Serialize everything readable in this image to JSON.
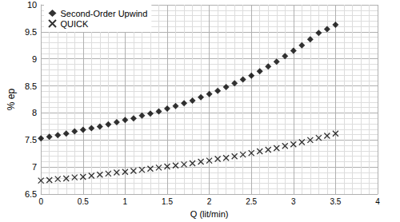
{
  "chart_data": {
    "type": "scatter",
    "x_label": "Q (lit/min)",
    "y_label": "% ep",
    "x": [
      0,
      0.1,
      0.2,
      0.3,
      0.4,
      0.5,
      0.6,
      0.7,
      0.8,
      0.9,
      1.0,
      1.1,
      1.2,
      1.3,
      1.4,
      1.5,
      1.6,
      1.7,
      1.8,
      1.9,
      2.0,
      2.1,
      2.2,
      2.3,
      2.4,
      2.5,
      2.6,
      2.7,
      2.8,
      2.9,
      3.0,
      3.1,
      3.2,
      3.3,
      3.4,
      3.5
    ],
    "series": [
      {
        "name": "Second-Order Upwind",
        "color": "#000000",
        "marker": "diamond",
        "values": [
          7.53,
          7.56,
          7.59,
          7.62,
          7.66,
          7.69,
          7.72,
          7.75,
          7.79,
          7.83,
          7.87,
          7.9,
          7.95,
          7.99,
          8.03,
          8.08,
          8.13,
          8.18,
          8.23,
          8.29,
          8.35,
          8.41,
          8.48,
          8.55,
          8.62,
          8.69,
          8.77,
          8.86,
          8.95,
          9.05,
          9.15,
          9.25,
          9.36,
          9.48,
          9.55,
          9.63
        ]
      },
      {
        "name": "QUICK",
        "color": "#000000",
        "marker": "x",
        "values": [
          6.75,
          6.76,
          6.78,
          6.79,
          6.81,
          6.82,
          6.84,
          6.86,
          6.88,
          6.9,
          6.91,
          6.93,
          6.95,
          6.97,
          6.99,
          7.01,
          7.03,
          7.05,
          7.07,
          7.1,
          7.12,
          7.15,
          7.17,
          7.2,
          7.23,
          7.26,
          7.29,
          7.32,
          7.35,
          7.39,
          7.42,
          7.46,
          7.5,
          7.54,
          7.58,
          7.62
        ]
      }
    ],
    "xlim": [
      0,
      4
    ],
    "xticks": [
      0,
      0.5,
      1,
      1.5,
      2,
      2.5,
      3,
      3.5,
      4
    ],
    "ylim": [
      6.5,
      10
    ],
    "yticks": [
      6.5,
      7,
      7.5,
      8,
      8.5,
      9,
      9.5,
      10
    ],
    "grid": true,
    "legend": "upper left"
  }
}
